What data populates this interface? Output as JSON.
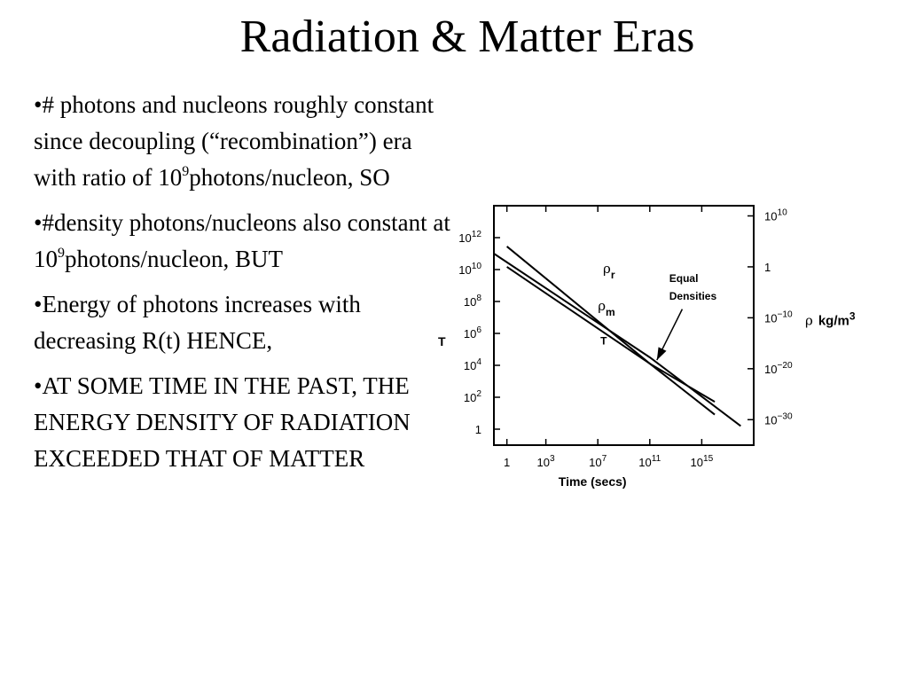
{
  "slide": {
    "title": "Radiation & Matter Eras",
    "bullets": [
      {
        "parts": [
          {
            "t": "•# photons and nucleons roughly constant since decoupling (“recombination”) era with ratio of 10"
          },
          {
            "t": "9",
            "sup": true
          },
          {
            "t": "photons/nucleon, SO"
          }
        ]
      },
      {
        "parts": [
          {
            "t": "•#density photons/nucleons also constant at 10"
          },
          {
            "t": "9",
            "sup": true
          },
          {
            "t": "photons/nucleon, BUT"
          }
        ]
      },
      {
        "parts": [
          {
            "t": "•Energy of photons increases with decreasing R(t) HENCE,"
          }
        ]
      },
      {
        "parts": [
          {
            "t": "•AT SOME TIME IN THE PAST, THE ENERGY DENSITY OF RADIATION EXCEEDED THAT OF MATTER"
          }
        ]
      }
    ]
  },
  "chart_data": {
    "type": "line",
    "xlabel": "Time (secs)",
    "x_scale": "log",
    "xlim_log10": [
      -1,
      19
    ],
    "x_ticks": [
      {
        "label": "1",
        "exp": 0
      },
      {
        "label": "10",
        "sup": "3",
        "exp": 3
      },
      {
        "label": "10",
        "sup": "7",
        "exp": 7
      },
      {
        "label": "10",
        "sup": "11",
        "exp": 11
      },
      {
        "label": "10",
        "sup": "15",
        "exp": 15
      }
    ],
    "left_axis": {
      "label": "T",
      "scale": "log",
      "range_log10": [
        -1,
        14
      ],
      "ticks": [
        {
          "label": "1",
          "exp": 0
        },
        {
          "label": "10",
          "sup": "2",
          "exp": 2
        },
        {
          "label": "10",
          "sup": "4",
          "exp": 4
        },
        {
          "label": "10",
          "sup": "6",
          "exp": 6
        },
        {
          "label": "10",
          "sup": "8",
          "exp": 8
        },
        {
          "label": "10",
          "sup": "10",
          "exp": 10
        },
        {
          "label": "10",
          "sup": "12",
          "exp": 12
        }
      ]
    },
    "right_axis": {
      "label_sym": "ρ",
      "label_unit": "kg/m",
      "label_unit_sup": "3",
      "scale": "log",
      "range_log10": [
        -35,
        12
      ],
      "ticks": [
        {
          "label": "10",
          "sup": "10",
          "exp": 10
        },
        {
          "label": "1",
          "sup": "",
          "exp": 0
        },
        {
          "label": "10",
          "sup": "−10",
          "exp": -10
        },
        {
          "label": "10",
          "sup": "−20",
          "exp": -20
        },
        {
          "label": "10",
          "sup": "−30",
          "exp": -30
        }
      ]
    },
    "series": [
      {
        "sym": "ρ",
        "sub": "r",
        "axis": "right",
        "points": [
          [
            0,
            4
          ],
          [
            11,
            -19
          ],
          [
            16,
            -29
          ]
        ]
      },
      {
        "sym": "ρ",
        "sub": "m",
        "axis": "right",
        "points": [
          [
            0,
            0
          ],
          [
            11,
            -19
          ],
          [
            16,
            -26.5
          ]
        ]
      },
      {
        "name": "T",
        "axis": "left",
        "points": [
          [
            -1,
            11
          ],
          [
            11,
            4.5
          ],
          [
            18,
            0.2
          ]
        ]
      }
    ],
    "annotation": {
      "lines": [
        "Equal",
        "Densities"
      ],
      "points_to": [
        11,
        -19
      ]
    }
  }
}
